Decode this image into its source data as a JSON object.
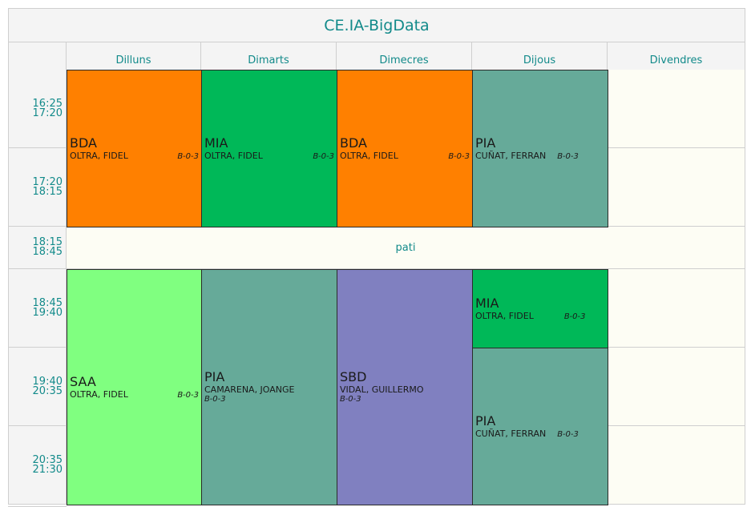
{
  "title": "CE.IA-BigData",
  "days": [
    "Dilluns",
    "Dimarts",
    "Dimecres",
    "Dijous",
    "Divendres"
  ],
  "times": [
    {
      "start": "16:25",
      "end": "17:20"
    },
    {
      "start": "17:20",
      "end": "18:15"
    },
    {
      "start": "18:15",
      "end": "18:45"
    },
    {
      "start": "18:45",
      "end": "19:40"
    },
    {
      "start": "19:40",
      "end": "20:35"
    },
    {
      "start": "20:35",
      "end": "21:30"
    }
  ],
  "break_label": "pati",
  "colors": {
    "BDA": "#ff8000",
    "MIA": "#00b858",
    "PIA": "#66aa99",
    "SAA": "#80ff80",
    "SBD": "#8080c0"
  },
  "classes": {
    "mon_a": {
      "code": "BDA",
      "teacher": "OLTRA, FIDEL",
      "room": "B-0-3"
    },
    "tue_a": {
      "code": "MIA",
      "teacher": "OLTRA, FIDEL",
      "room": "B-0-3"
    },
    "wed_a": {
      "code": "BDA",
      "teacher": "OLTRA, FIDEL",
      "room": "B-0-3"
    },
    "thu_a": {
      "code": "PIA",
      "teacher": "CUÑAT, FERRAN",
      "room": "B-0-3"
    },
    "mon_b": {
      "code": "SAA",
      "teacher": "OLTRA, FIDEL",
      "room": "B-0-3"
    },
    "tue_b": {
      "code": "PIA",
      "teacher": "CAMARENA, JOANGE",
      "room": "B-0-3"
    },
    "wed_b": {
      "code": "SBD",
      "teacher": "VIDAL, GUILLERMO",
      "room": "B-0-3"
    },
    "thu_b": {
      "code": "MIA",
      "teacher": "OLTRA, FIDEL",
      "room": "B-0-3"
    },
    "thu_c": {
      "code": "PIA",
      "teacher": "CUÑAT, FERRAN",
      "room": "B-0-3"
    }
  }
}
